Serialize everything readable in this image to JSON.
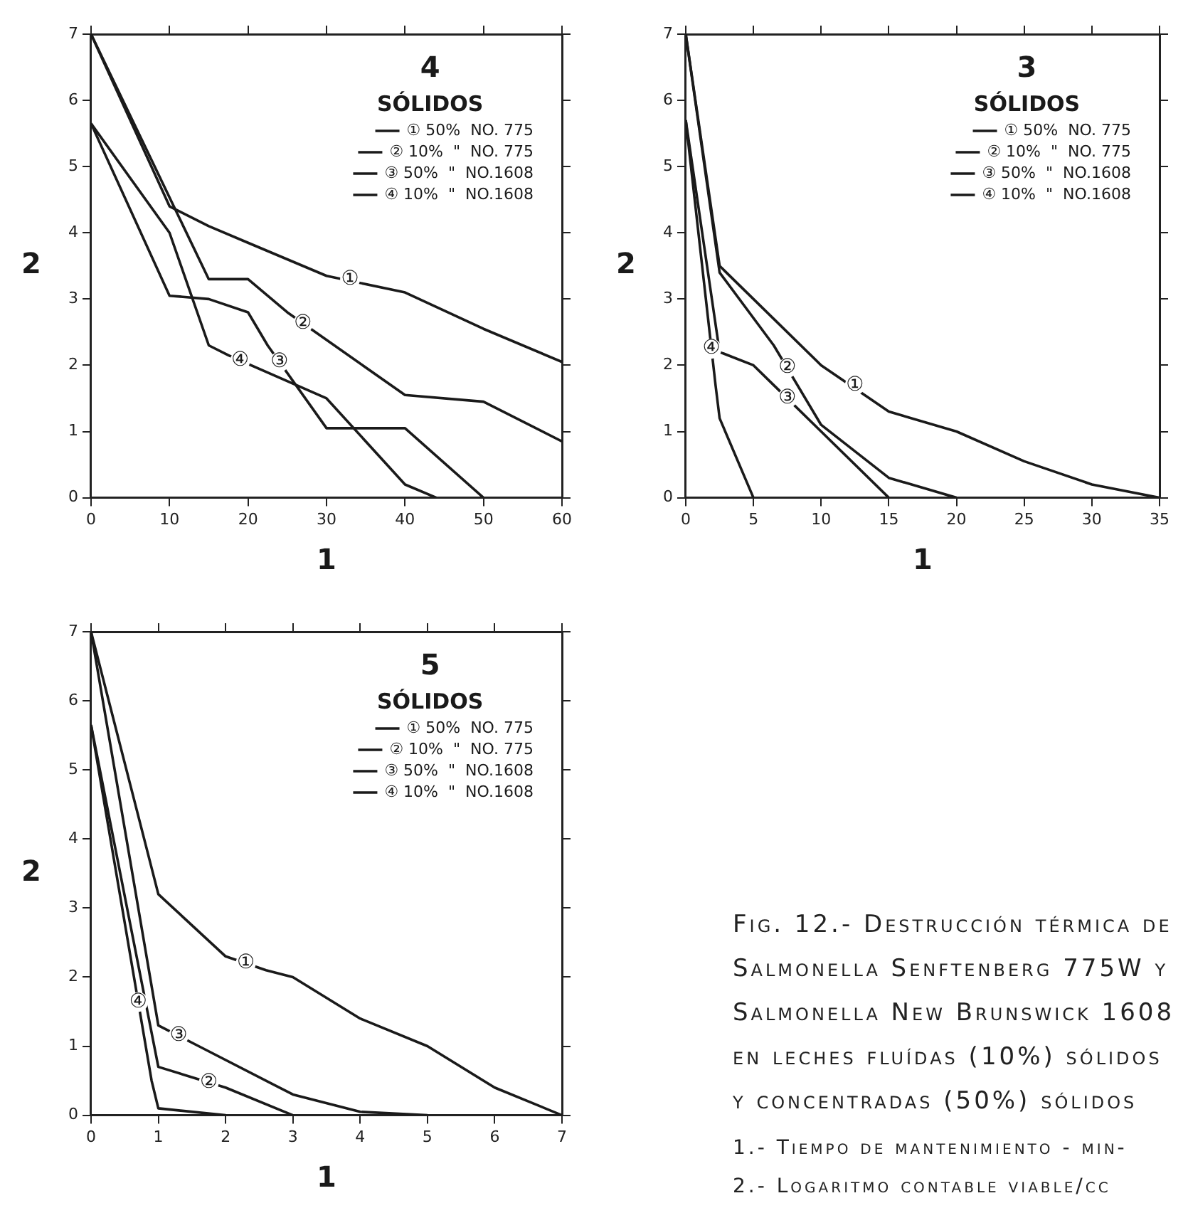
{
  "chart_data": [
    {
      "type": "line",
      "title": "4",
      "legend_title": "SÓLIDOS",
      "xlabel": "1",
      "ylabel": "2",
      "xlim": [
        0,
        60
      ],
      "xticks": [
        0,
        10,
        20,
        30,
        40,
        50,
        60
      ],
      "ylim": [
        0,
        7
      ],
      "yticks": [
        0,
        1,
        2,
        3,
        4,
        5,
        6,
        7
      ],
      "grid": false,
      "legend": "top right",
      "marker": "none",
      "line_style": "solid",
      "series": [
        {
          "name": "① 50%  NO. 775",
          "color": "#1a1a1a",
          "x": [
            0,
            10,
            15,
            20,
            25,
            30,
            40,
            50,
            60
          ],
          "values": [
            7,
            4.4,
            4.1,
            3.85,
            3.6,
            3.35,
            3.1,
            2.55,
            2.05
          ]
        },
        {
          "name": "② 10%  \"  NO. 775",
          "color": "#1a1a1a",
          "x": [
            0,
            15,
            20,
            25,
            40,
            50,
            60
          ],
          "values": [
            7,
            3.3,
            3.3,
            2.8,
            1.55,
            1.45,
            0.85
          ]
        },
        {
          "name": "③ 50%  \"  NO.1608",
          "color": "#1a1a1a",
          "x": [
            0,
            10,
            15,
            20,
            22.5,
            30,
            40,
            50
          ],
          "values": [
            5.65,
            3.05,
            3.0,
            2.8,
            2.3,
            1.05,
            1.05,
            0
          ]
        },
        {
          "name": "④ 10%  \"  NO.1608",
          "color": "#1a1a1a",
          "x": [
            0,
            10,
            15,
            17.5,
            30,
            40,
            44
          ],
          "values": [
            5.65,
            4.0,
            2.3,
            2.15,
            1.5,
            0.2,
            0
          ]
        }
      ],
      "annotations": [
        {
          "text": "①",
          "x": 33,
          "y": 3.3
        },
        {
          "text": "②",
          "x": 27,
          "y": 2.63
        },
        {
          "text": "③",
          "x": 24,
          "y": 2.05
        },
        {
          "text": "④",
          "x": 19,
          "y": 2.07
        }
      ]
    },
    {
      "type": "line",
      "title": "3",
      "legend_title": "SÓLIDOS",
      "xlabel": "1",
      "ylabel": "2",
      "xlim": [
        0,
        35
      ],
      "xticks": [
        0,
        5,
        10,
        15,
        20,
        25,
        30,
        35
      ],
      "ylim": [
        0,
        7
      ],
      "yticks": [
        0,
        1,
        2,
        3,
        4,
        5,
        6,
        7
      ],
      "grid": false,
      "legend": "top right",
      "marker": "none",
      "line_style": "solid",
      "series": [
        {
          "name": "① 50%  NO. 775",
          "color": "#1a1a1a",
          "x": [
            0,
            2.5,
            10,
            15,
            20,
            25,
            30,
            35
          ],
          "values": [
            7,
            3.5,
            2.0,
            1.3,
            1.0,
            0.55,
            0.2,
            0
          ]
        },
        {
          "name": "② 10%  \"  NO. 775",
          "color": "#1a1a1a",
          "x": [
            0,
            2.5,
            6.5,
            10,
            15,
            20
          ],
          "values": [
            7,
            3.4,
            2.3,
            1.1,
            0.3,
            0
          ]
        },
        {
          "name": "③ 50%  \"  NO.1608",
          "color": "#1a1a1a",
          "x": [
            0,
            2.5,
            5,
            6.5,
            10,
            15
          ],
          "values": [
            5.7,
            2.2,
            2.0,
            1.7,
            1.0,
            0
          ]
        },
        {
          "name": "④ 10%  \"  NO.1608",
          "color": "#1a1a1a",
          "x": [
            0,
            2.2,
            2.5,
            5
          ],
          "values": [
            5.7,
            1.7,
            1.2,
            0
          ]
        }
      ],
      "annotations": [
        {
          "text": "①",
          "x": 12.5,
          "y": 1.7
        },
        {
          "text": "②",
          "x": 7.5,
          "y": 1.96
        },
        {
          "text": "③",
          "x": 7.5,
          "y": 1.5
        },
        {
          "text": "④",
          "x": 1.9,
          "y": 2.25
        }
      ]
    },
    {
      "type": "line",
      "title": "5",
      "legend_title": "SÓLIDOS",
      "xlabel": "1",
      "ylabel": "2",
      "xlim": [
        0,
        7
      ],
      "xticks": [
        0,
        1,
        2,
        3,
        4,
        5,
        6,
        7
      ],
      "ylim": [
        0,
        7
      ],
      "yticks": [
        0,
        1,
        2,
        3,
        4,
        5,
        6,
        7
      ],
      "grid": false,
      "legend": "top right",
      "marker": "none",
      "line_style": "solid",
      "series": [
        {
          "name": "① 50%  NO. 775",
          "color": "#1a1a1a",
          "x": [
            0,
            1,
            2,
            2.6,
            3,
            4,
            5,
            6,
            7
          ],
          "values": [
            7,
            3.2,
            2.3,
            2.1,
            2.0,
            1.4,
            1.0,
            0.4,
            0
          ]
        },
        {
          "name": "② 10%  \"  NO. 775",
          "color": "#1a1a1a",
          "x": [
            0,
            1,
            1.5,
            2,
            3
          ],
          "values": [
            5.65,
            0.7,
            0.55,
            0.4,
            0
          ]
        },
        {
          "name": "③ 50%  \"  NO.1608",
          "color": "#1a1a1a",
          "x": [
            0,
            1,
            1.6,
            3,
            4,
            5
          ],
          "values": [
            7,
            1.3,
            1.0,
            0.3,
            0.05,
            0
          ]
        },
        {
          "name": "④ 10%  \"  NO.1608",
          "color": "#1a1a1a",
          "x": [
            0,
            0.9,
            1,
            2
          ],
          "values": [
            5.65,
            0.5,
            0.1,
            0
          ]
        }
      ],
      "annotations": [
        {
          "text": "①",
          "x": 2.3,
          "y": 2.2
        },
        {
          "text": "②",
          "x": 1.75,
          "y": 0.47
        },
        {
          "text": "③",
          "x": 1.3,
          "y": 1.15
        },
        {
          "text": "④",
          "x": 0.7,
          "y": 1.64
        }
      ]
    },
    {
      "type": "other",
      "title": "Fig. 12.- Destrucción térmica de Salmonella Senftenberg 775W y Salmonella New Brunswick 1608 en leches fluídas (10%) sólidos y concentradas (50%) sólidos",
      "annotations": [
        "1.- Tiempo de mantenimiento - min-",
        "2.- Logaritmo contable viable/cc"
      ]
    }
  ]
}
